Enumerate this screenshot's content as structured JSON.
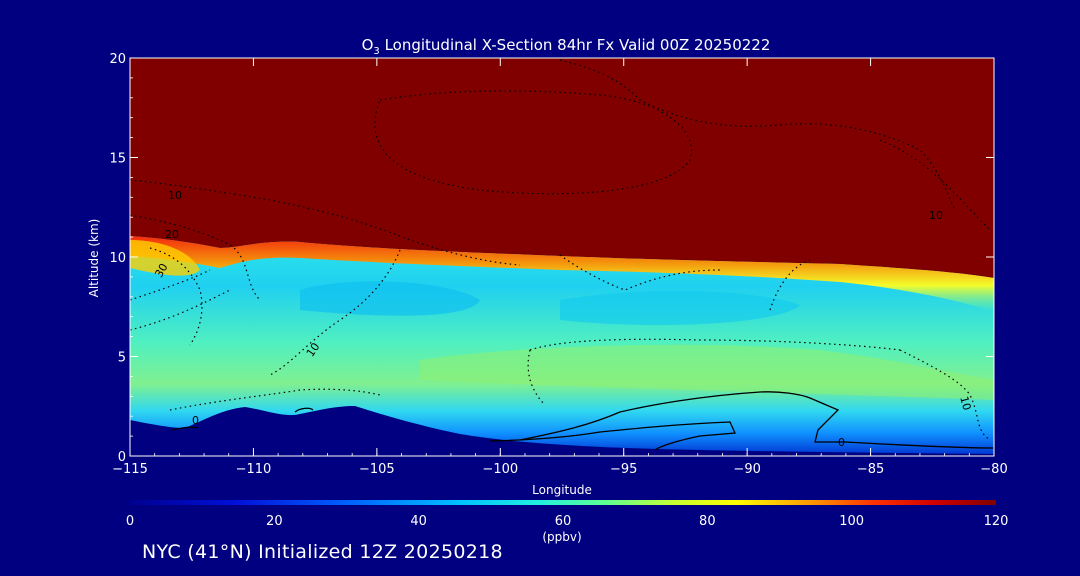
{
  "chart_data": {
    "type": "heatmap",
    "title_prefix": "O",
    "title_sub": "3",
    "title_rest": " Longitudinal X-Section 84hr  Fx Valid 00Z 20250222",
    "xlabel": "Longitude",
    "ylabel": "Altitude (km)",
    "xlim": [
      -115,
      -80
    ],
    "ylim": [
      0,
      20
    ],
    "xticks": [
      -115,
      -110,
      -105,
      -100,
      -95,
      -90,
      -85,
      -80
    ],
    "xtick_labels": [
      "−115",
      "−110",
      "−105",
      "−100",
      "−95",
      "−90",
      "−85",
      "−80"
    ],
    "yticks": [
      0,
      5,
      10,
      15,
      20
    ],
    "ytick_labels": [
      "0",
      "5",
      "10",
      "15",
      "20"
    ],
    "colorbar": {
      "min": 0,
      "max": 120,
      "ticks": [
        0,
        20,
        40,
        60,
        80,
        100,
        120
      ],
      "tick_labels": [
        "0",
        "20",
        "40",
        "60",
        "80",
        "100",
        "120"
      ],
      "unit_label": "(ppbv)"
    },
    "tropopause_height_km": [
      {
        "lon": -115,
        "alt": 10.8
      },
      {
        "lon": -112,
        "alt": 10.4
      },
      {
        "lon": -108,
        "alt": 10.6
      },
      {
        "lon": -105,
        "alt": 10.3
      },
      {
        "lon": -100,
        "alt": 10.0
      },
      {
        "lon": -95,
        "alt": 9.8
      },
      {
        "lon": -90,
        "alt": 9.6
      },
      {
        "lon": -85,
        "alt": 9.3
      },
      {
        "lon": -80,
        "alt": 8.7
      }
    ],
    "terrain_height_km": [
      {
        "lon": -115,
        "alt": 1.7
      },
      {
        "lon": -113,
        "alt": 1.3
      },
      {
        "lon": -111,
        "alt": 2.2
      },
      {
        "lon": -109.5,
        "alt": 2.4
      },
      {
        "lon": -108,
        "alt": 2.0
      },
      {
        "lon": -106,
        "alt": 2.4
      },
      {
        "lon": -104,
        "alt": 1.8
      },
      {
        "lon": -100,
        "alt": 0.7
      },
      {
        "lon": -95,
        "alt": 0.4
      },
      {
        "lon": -90,
        "alt": 0.3
      },
      {
        "lon": -85,
        "alt": 0.2
      },
      {
        "lon": -80,
        "alt": 0.1
      }
    ],
    "contour_labels": [
      "10",
      "20",
      "30",
      "0",
      "10",
      "0",
      "10",
      "10"
    ],
    "footer": "NYC (41°N) Initialized 12Z 20250218"
  }
}
